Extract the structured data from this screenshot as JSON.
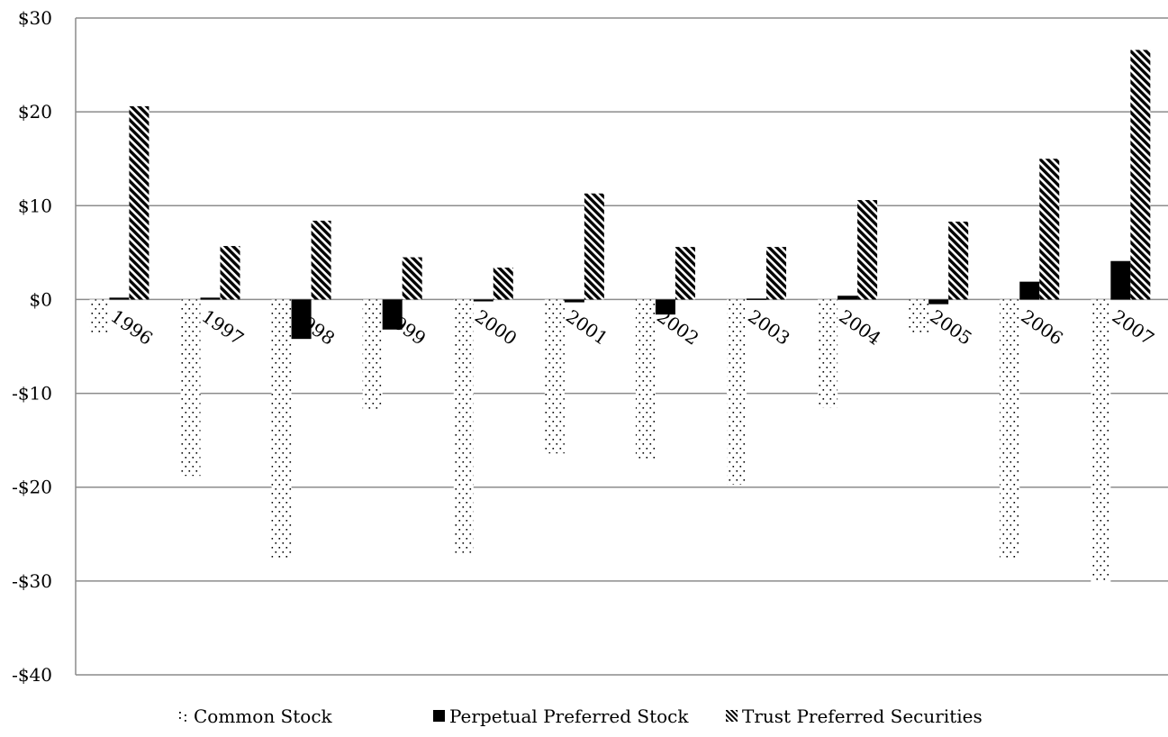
{
  "chart_data": {
    "type": "bar",
    "title": "",
    "xlabel": "",
    "ylabel": "",
    "categories": [
      "1996",
      "1997",
      "1998",
      "1999",
      "2000",
      "2001",
      "2002",
      "2003",
      "2004",
      "2005",
      "2006",
      "2007"
    ],
    "series": [
      {
        "name": "Common Stock",
        "pattern": "dots",
        "color": "#000000",
        "values": [
          -3.7,
          -18.8,
          -27.7,
          -11.8,
          -27.0,
          -16.4,
          -17.2,
          -19.7,
          -11.5,
          -3.8,
          -27.7,
          -30.2
        ]
      },
      {
        "name": "Perpetual Preferred Stock",
        "pattern": "solid",
        "color": "#000000",
        "values": [
          0.2,
          0.2,
          -4.2,
          -3.2,
          -0.2,
          -0.3,
          -1.6,
          0.1,
          0.4,
          -0.5,
          1.9,
          4.1
        ]
      },
      {
        "name": "Trust Preferred Securities",
        "pattern": "diagonal-stripes",
        "color": "#000000",
        "values": [
          20.6,
          5.7,
          8.4,
          4.5,
          3.4,
          11.3,
          5.6,
          5.6,
          10.6,
          8.3,
          15.0,
          26.6
        ]
      }
    ],
    "ylim": [
      -40,
      30
    ],
    "yticks": [
      30,
      20,
      10,
      0,
      -10,
      -20,
      -30,
      -40
    ],
    "ytick_labels": [
      "$30",
      "$20",
      "$10",
      "$0",
      "-$10",
      "-$20",
      "-$30",
      "-$40"
    ],
    "grid": true,
    "legend": "bottom"
  }
}
